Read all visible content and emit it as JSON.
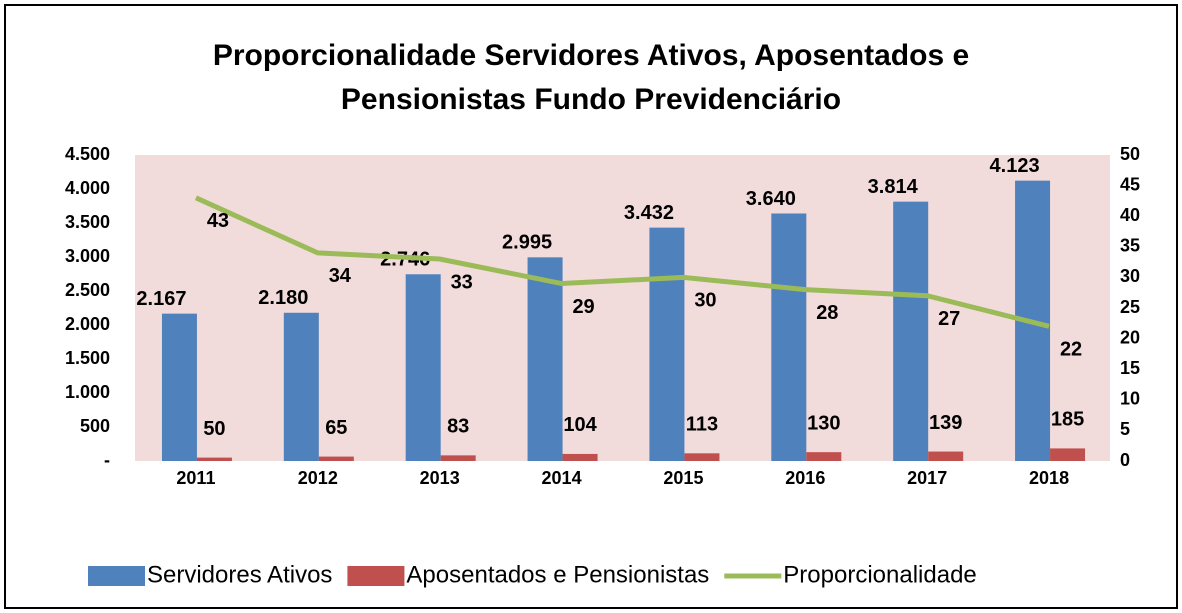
{
  "chart_data": {
    "type": "bar_line",
    "title": "Proporcionalidade Servidores Ativos, Aposentados e Pensionistas Fundo Previdenciário",
    "categories": [
      "2011",
      "2012",
      "2013",
      "2014",
      "2015",
      "2016",
      "2017",
      "2018"
    ],
    "series": [
      {
        "name": "Servidores Ativos",
        "type": "bar",
        "color": "#4f81bd",
        "values": [
          2167,
          2180,
          2746,
          2995,
          3432,
          3640,
          3814,
          4123
        ],
        "value_labels": [
          "2.167",
          "2.180",
          "2.746",
          "2.995",
          "3.432",
          "3.640",
          "3.814",
          "4.123"
        ]
      },
      {
        "name": "Aposentados e Pensionistas",
        "type": "bar",
        "color": "#c0504d",
        "values": [
          50,
          65,
          83,
          104,
          113,
          130,
          139,
          185
        ]
      },
      {
        "name": "Proporcionalidade",
        "type": "line",
        "axis": "y2",
        "color": "#9bbb59",
        "values": [
          43,
          34,
          33,
          29,
          30,
          28,
          27,
          22
        ]
      }
    ],
    "ylim": [
      0,
      4500
    ],
    "yticks": [
      {
        "value": 0,
        "label": "-"
      },
      {
        "value": 500,
        "label": "500"
      },
      {
        "value": 1000,
        "label": "1.000"
      },
      {
        "value": 1500,
        "label": "1.500"
      },
      {
        "value": 2000,
        "label": "2.000"
      },
      {
        "value": 2500,
        "label": "2.500"
      },
      {
        "value": 3000,
        "label": "3.000"
      },
      {
        "value": 3500,
        "label": "3.500"
      },
      {
        "value": 4000,
        "label": "4.000"
      },
      {
        "value": 4500,
        "label": "4.500"
      }
    ],
    "y2lim": [
      0,
      50
    ],
    "y2ticks": [
      0,
      5,
      10,
      15,
      20,
      25,
      30,
      35,
      40,
      45,
      50
    ],
    "legend": "bottom"
  }
}
